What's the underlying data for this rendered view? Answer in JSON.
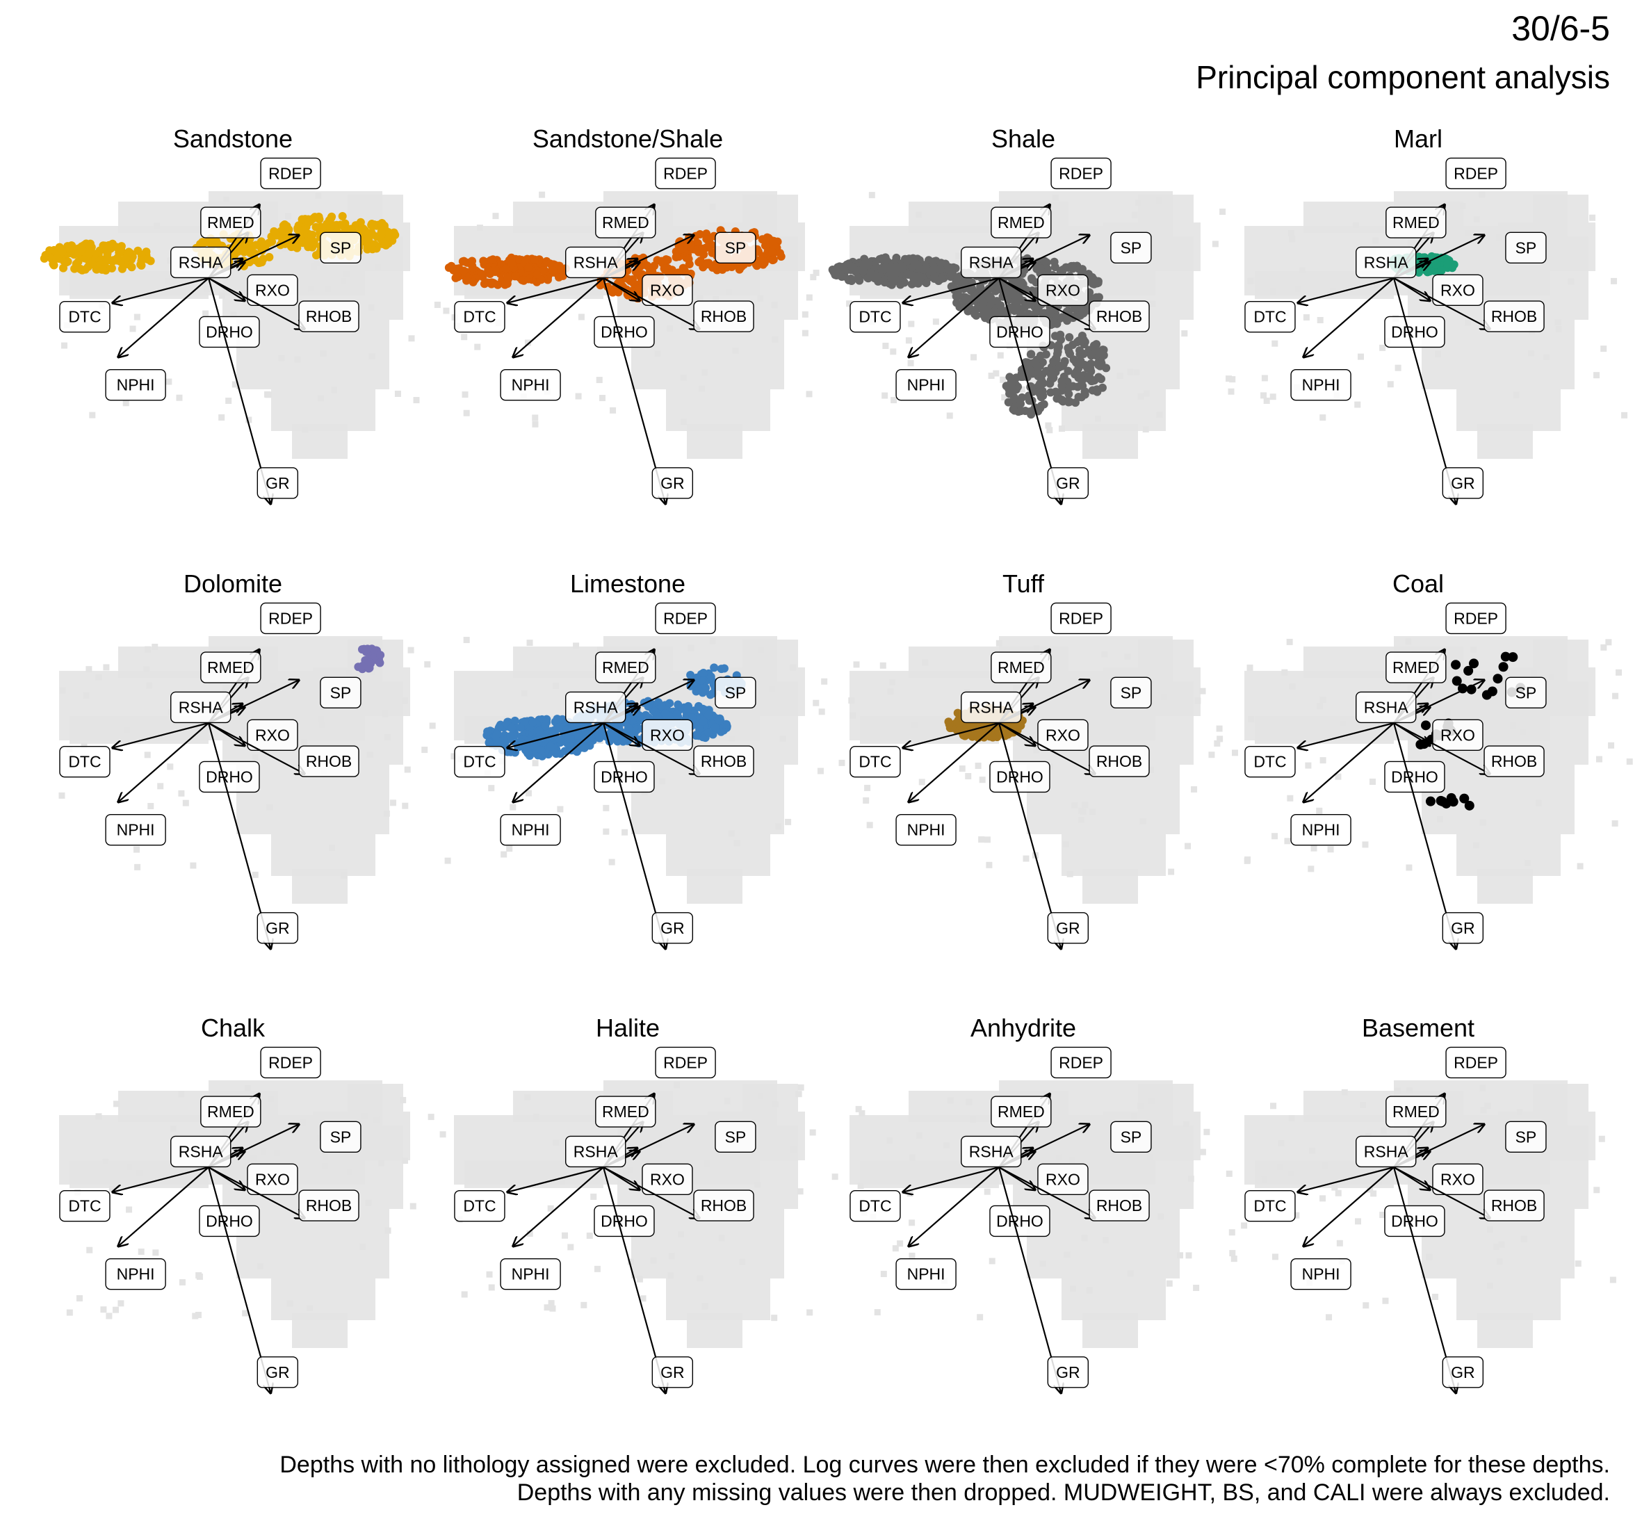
{
  "header": {
    "title": "30/6-5",
    "subtitle": "Principal component analysis"
  },
  "footnote": {
    "line1": "Depths with no lithology assigned were excluded. Log curves were then excluded if they were <70% complete for these depths.",
    "line2": "Depths with any missing values were then dropped. MUDWEIGHT, BS, and CALI were always excluded."
  },
  "colors": {
    "background_cloud": "#e3e3e3",
    "arrow": "#000000",
    "label_border": "#000000",
    "label_fill": "#ffffff"
  },
  "chart_data": {
    "type": "scatter",
    "variant": "PCA biplot, faceted by lithology",
    "loadings": [
      {
        "name": "RDEP",
        "pc1": 0.45,
        "pc2": 0.65
      },
      {
        "name": "RMED",
        "pc1": 0.35,
        "pc2": 0.4
      },
      {
        "name": "SP",
        "pc1": 0.8,
        "pc2": 0.38
      },
      {
        "name": "RXO",
        "pc1": 0.32,
        "pc2": 0.14
      },
      {
        "name": "RSHA",
        "pc1": 0.3,
        "pc2": 0.17
      },
      {
        "name": "DTC",
        "pc1": -0.85,
        "pc2": -0.22
      },
      {
        "name": "NPHI",
        "pc1": -0.8,
        "pc2": -0.7
      },
      {
        "name": "DRHO",
        "pc1": 0.32,
        "pc2": -0.2
      },
      {
        "name": "RHOB",
        "pc1": 0.85,
        "pc2": -0.45
      },
      {
        "name": "GR",
        "pc1": 0.55,
        "pc2": -2.0
      }
    ],
    "facets": [
      {
        "name": "Sandstone",
        "color": "#E6AB02",
        "has_points": true
      },
      {
        "name": "Sandstone/Shale",
        "color": "#D95F02",
        "has_points": true
      },
      {
        "name": "Shale",
        "color": "#666666",
        "has_points": true
      },
      {
        "name": "Marl",
        "color": "#1B9E77",
        "has_points": true
      },
      {
        "name": "Dolomite",
        "color": "#7570B3",
        "has_points": true
      },
      {
        "name": "Limestone",
        "color": "#3B7FC0",
        "has_points": true
      },
      {
        "name": "Tuff",
        "color": "#A6761D",
        "has_points": true
      },
      {
        "name": "Coal",
        "color": "#000000",
        "has_points": true
      },
      {
        "name": "Chalk",
        "color": "#E7298A",
        "has_points": false
      },
      {
        "name": "Halite",
        "color": "#66A61E",
        "has_points": false
      },
      {
        "name": "Anhydrite",
        "color": "#E6AB02",
        "has_points": false
      },
      {
        "name": "Basement",
        "color": "#A6CEE3",
        "has_points": false
      }
    ]
  }
}
